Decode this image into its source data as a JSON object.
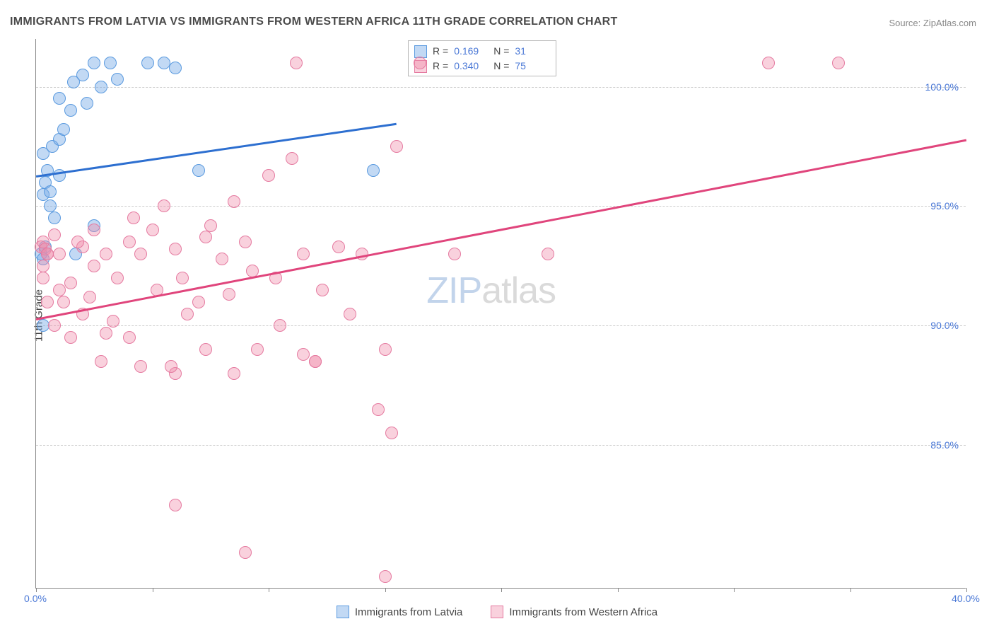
{
  "title": "IMMIGRANTS FROM LATVIA VS IMMIGRANTS FROM WESTERN AFRICA 11TH GRADE CORRELATION CHART",
  "source_prefix": "Source: ",
  "source_name": "ZipAtlas.com",
  "y_axis_label": "11th Grade",
  "watermark_zip": "ZIP",
  "watermark_atlas": "atlas",
  "chart": {
    "type": "scatter",
    "background_color": "#ffffff",
    "grid_color": "#cccccc",
    "axis_color": "#888888",
    "xlim": [
      0,
      40
    ],
    "ylim": [
      79,
      102
    ],
    "x_ticks": [
      0,
      5,
      10,
      15,
      20,
      25,
      30,
      35,
      40
    ],
    "x_tick_labels": [
      {
        "value": 0,
        "label": "0.0%"
      },
      {
        "value": 40,
        "label": "40.0%"
      }
    ],
    "y_gridlines": [
      85,
      90,
      95,
      100
    ],
    "y_tick_labels": [
      {
        "value": 85,
        "label": "85.0%"
      },
      {
        "value": 90,
        "label": "90.0%"
      },
      {
        "value": 95,
        "label": "95.0%"
      },
      {
        "value": 100,
        "label": "100.0%"
      }
    ],
    "marker_radius": 9,
    "marker_opacity": 0.55,
    "title_fontsize": 16,
    "label_fontsize": 15,
    "tick_fontsize": 14
  },
  "series": [
    {
      "id": "latvia",
      "label": "Immigrants from Latvia",
      "color_fill": "rgba(120,170,230,0.45)",
      "color_stroke": "#5a9adf",
      "trend_color": "#2d6fd0",
      "R": "0.169",
      "N": "31",
      "trend": {
        "x1": 0,
        "y1": 96.3,
        "x2": 15.5,
        "y2": 98.5
      },
      "points": [
        [
          0.3,
          97.2
        ],
        [
          0.4,
          96.0
        ],
        [
          0.6,
          95.0
        ],
        [
          0.8,
          94.5
        ],
        [
          0.5,
          96.5
        ],
        [
          0.7,
          97.5
        ],
        [
          0.3,
          95.5
        ],
        [
          1.0,
          97.8
        ],
        [
          1.2,
          98.2
        ],
        [
          1.5,
          99.0
        ],
        [
          1.0,
          99.5
        ],
        [
          1.6,
          100.2
        ],
        [
          2.0,
          100.5
        ],
        [
          2.5,
          101.0
        ],
        [
          2.2,
          99.3
        ],
        [
          2.8,
          100.0
        ],
        [
          3.2,
          101.0
        ],
        [
          3.5,
          100.3
        ],
        [
          4.8,
          101.0
        ],
        [
          5.5,
          101.0
        ],
        [
          6.0,
          100.8
        ],
        [
          0.2,
          93.0
        ],
        [
          0.3,
          92.8
        ],
        [
          0.4,
          93.3
        ],
        [
          1.7,
          93.0
        ],
        [
          2.5,
          94.2
        ],
        [
          0.3,
          90.0
        ],
        [
          7.0,
          96.5
        ],
        [
          1.0,
          96.3
        ],
        [
          14.5,
          96.5
        ],
        [
          0.6,
          95.6
        ]
      ]
    },
    {
      "id": "western_africa",
      "label": "Immigrants from Western Africa",
      "color_fill": "rgba(240,140,170,0.40)",
      "color_stroke": "#e57aa0",
      "trend_color": "#e0457c",
      "R": "0.340",
      "N": "75",
      "trend": {
        "x1": 0,
        "y1": 90.3,
        "x2": 40,
        "y2": 97.8
      },
      "points": [
        [
          0.2,
          93.3
        ],
        [
          0.3,
          93.5
        ],
        [
          0.5,
          93.0
        ],
        [
          0.4,
          93.2
        ],
        [
          0.8,
          93.8
        ],
        [
          0.3,
          92.5
        ],
        [
          0.5,
          91.0
        ],
        [
          1.0,
          93.0
        ],
        [
          1.2,
          91.0
        ],
        [
          1.5,
          89.5
        ],
        [
          2.0,
          93.3
        ],
        [
          2.3,
          91.2
        ],
        [
          2.5,
          92.5
        ],
        [
          3.0,
          93.0
        ],
        [
          3.3,
          90.2
        ],
        [
          3.5,
          92.0
        ],
        [
          4.0,
          93.5
        ],
        [
          4.2,
          94.5
        ],
        [
          4.5,
          93.0
        ],
        [
          5.0,
          94.0
        ],
        [
          5.2,
          91.5
        ],
        [
          5.5,
          95.0
        ],
        [
          6.0,
          93.2
        ],
        [
          6.3,
          92.0
        ],
        [
          6.5,
          90.5
        ],
        [
          7.0,
          91.0
        ],
        [
          7.3,
          93.7
        ],
        [
          7.5,
          94.2
        ],
        [
          8.0,
          92.8
        ],
        [
          8.3,
          91.3
        ],
        [
          8.5,
          95.2
        ],
        [
          9.0,
          93.5
        ],
        [
          9.3,
          92.3
        ],
        [
          9.5,
          89.0
        ],
        [
          10.0,
          96.3
        ],
        [
          10.3,
          92.0
        ],
        [
          10.5,
          90.0
        ],
        [
          11.0,
          97.0
        ],
        [
          11.2,
          101.0
        ],
        [
          11.5,
          93.0
        ],
        [
          12.0,
          88.5
        ],
        [
          12.3,
          91.5
        ],
        [
          13.0,
          93.3
        ],
        [
          13.5,
          90.5
        ],
        [
          14.0,
          93.0
        ],
        [
          15.0,
          89.0
        ],
        [
          15.3,
          85.5
        ],
        [
          15.5,
          97.5
        ],
        [
          9.0,
          80.5
        ],
        [
          6.0,
          82.5
        ],
        [
          14.7,
          86.5
        ],
        [
          11.5,
          88.8
        ],
        [
          12.0,
          88.5
        ],
        [
          8.5,
          88.0
        ],
        [
          6.0,
          88.0
        ],
        [
          4.5,
          88.3
        ],
        [
          2.8,
          88.5
        ],
        [
          4.0,
          89.5
        ],
        [
          2.0,
          90.5
        ],
        [
          1.5,
          91.8
        ],
        [
          0.8,
          90.0
        ],
        [
          15.0,
          79.5
        ],
        [
          16.5,
          101.0
        ],
        [
          18.0,
          93.0
        ],
        [
          22.0,
          93.0
        ],
        [
          31.5,
          101.0
        ],
        [
          34.5,
          101.0
        ],
        [
          5.8,
          88.3
        ],
        [
          7.3,
          89.0
        ],
        [
          3.0,
          89.7
        ],
        [
          1.0,
          91.5
        ],
        [
          0.5,
          93.0
        ],
        [
          0.3,
          92.0
        ],
        [
          1.8,
          93.5
        ],
        [
          2.5,
          94.0
        ]
      ]
    }
  ],
  "stats_box": {
    "R_label": "R =",
    "N_label": "N ="
  },
  "bottom_legend": [
    {
      "series_id": "latvia"
    },
    {
      "series_id": "western_africa"
    }
  ]
}
